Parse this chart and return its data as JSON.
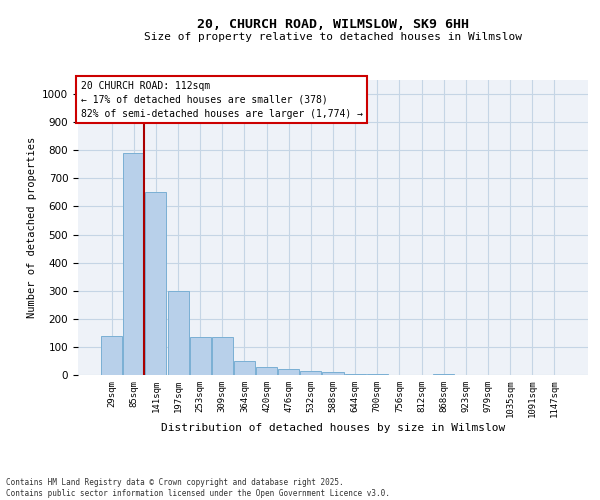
{
  "title_line1": "20, CHURCH ROAD, WILMSLOW, SK9 6HH",
  "title_line2": "Size of property relative to detached houses in Wilmslow",
  "xlabel": "Distribution of detached houses by size in Wilmslow",
  "ylabel": "Number of detached properties",
  "bin_labels": [
    "29sqm",
    "85sqm",
    "141sqm",
    "197sqm",
    "253sqm",
    "309sqm",
    "364sqm",
    "420sqm",
    "476sqm",
    "532sqm",
    "588sqm",
    "644sqm",
    "700sqm",
    "756sqm",
    "812sqm",
    "868sqm",
    "923sqm",
    "979sqm",
    "1035sqm",
    "1091sqm",
    "1147sqm"
  ],
  "bar_heights": [
    140,
    790,
    650,
    300,
    135,
    135,
    50,
    30,
    20,
    15,
    10,
    5,
    5,
    0,
    0,
    5,
    0,
    0,
    0,
    0,
    0
  ],
  "bar_color": "#b8d0ea",
  "bar_edge_color": "#7aafd4",
  "vline_x_bar_index": 1,
  "annotation_text_line1": "20 CHURCH ROAD: 112sqm",
  "annotation_text_line2": "← 17% of detached houses are smaller (378)",
  "annotation_text_line3": "82% of semi-detached houses are larger (1,774) →",
  "annotation_box_color": "#cc0000",
  "vline_color": "#aa0000",
  "grid_color": "#c5d5e5",
  "bg_color": "#eef2f8",
  "footer_line1": "Contains HM Land Registry data © Crown copyright and database right 2025.",
  "footer_line2": "Contains public sector information licensed under the Open Government Licence v3.0.",
  "ylim_max": 1050,
  "yticks": [
    0,
    100,
    200,
    300,
    400,
    500,
    600,
    700,
    800,
    900,
    1000
  ]
}
